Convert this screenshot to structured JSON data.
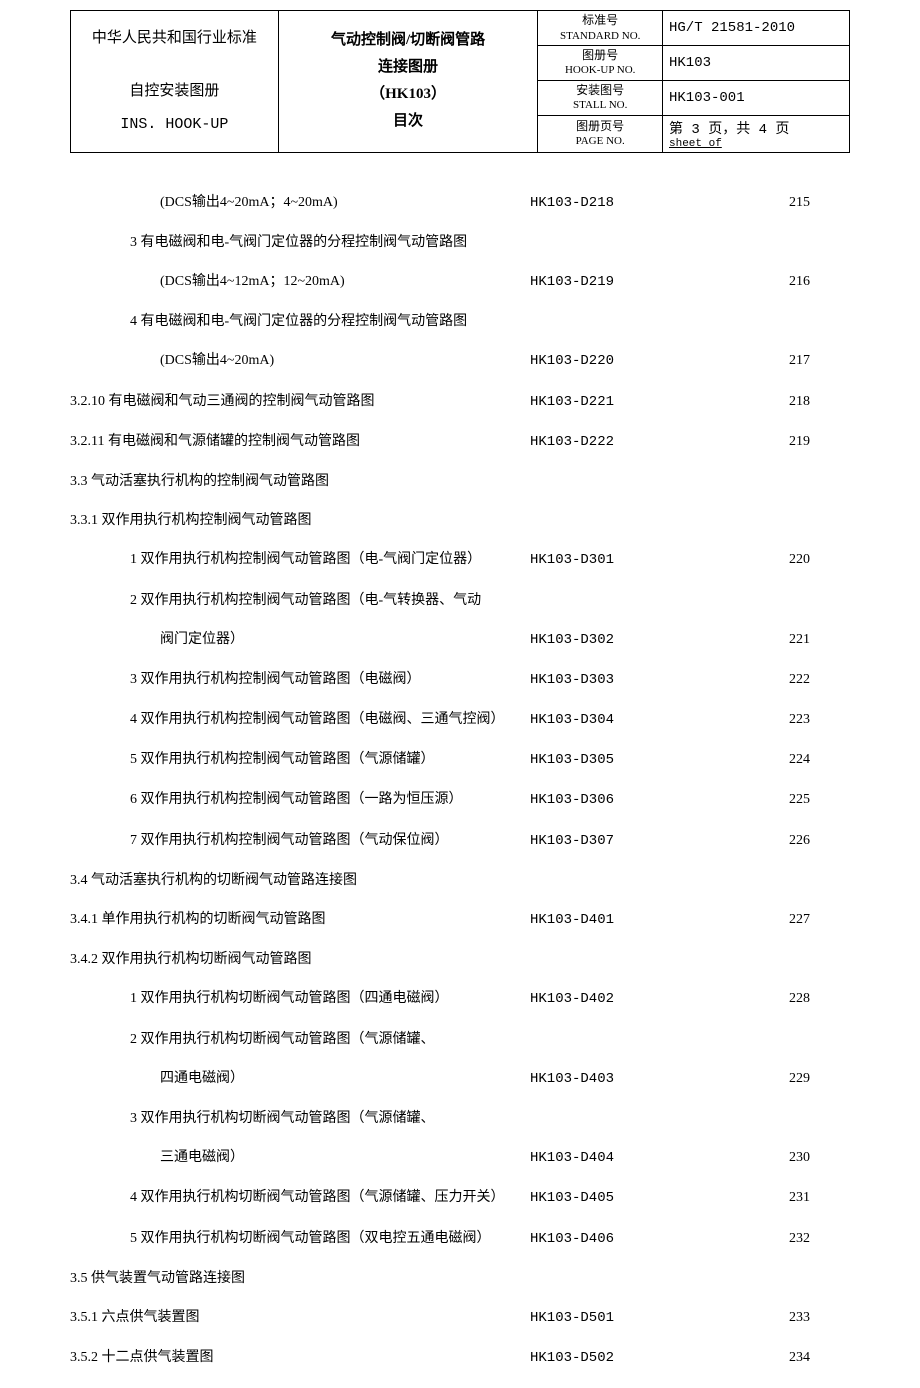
{
  "header": {
    "left_line1": "中华人民共和国行业标准",
    "left_line2": "自控安装图册",
    "left_line3": "INS. HOOK-UP",
    "center_line1": "气动控制阀/切断阀管路",
    "center_line2": "连接图册",
    "center_line3": "（HK103）",
    "center_line4": "目次",
    "std_no_label_cn": "标准号",
    "std_no_label_en": "STANDARD NO.",
    "std_no_value": "HG/T 21581-2010",
    "hookup_no_label_cn": "图册号",
    "hookup_no_label_en": "HOOK-UP NO.",
    "hookup_no_value": "HK103",
    "stall_no_label_cn": "安装图号",
    "stall_no_label_en": "STALL NO.",
    "stall_no_value": "HK103-001",
    "page_no_label_cn": "图册页号",
    "page_no_label_en": "PAGE NO.",
    "page_no_value_cn": "第 3 页，共 4 页",
    "page_no_value_en": "sheet     of"
  },
  "rows": [
    {
      "indent": 3,
      "label": "(DCS输出4~20mA；4~20mA)",
      "code": "HK103-D218",
      "page": "215"
    },
    {
      "indent": 2,
      "label": "3 有电磁阀和电-气阀门定位器的分程控制阀气动管路图",
      "code": "",
      "page": ""
    },
    {
      "indent": 3,
      "label": "(DCS输出4~12mA；12~20mA)",
      "code": "HK103-D219",
      "page": "216"
    },
    {
      "indent": 2,
      "label": "4 有电磁阀和电-气阀门定位器的分程控制阀气动管路图",
      "code": "",
      "page": ""
    },
    {
      "indent": 3,
      "label": "(DCS输出4~20mA)",
      "code": "HK103-D220",
      "page": "217"
    },
    {
      "indent": 0,
      "label": "3.2.10 有电磁阀和气动三通阀的控制阀气动管路图",
      "code": "HK103-D221",
      "page": "218"
    },
    {
      "indent": 0,
      "label": "3.2.11 有电磁阀和气源储罐的控制阀气动管路图",
      "code": "HK103-D222",
      "page": "219"
    },
    {
      "indent": 0,
      "label": "3.3 气动活塞执行机构的控制阀气动管路图",
      "code": "",
      "page": ""
    },
    {
      "indent": 0,
      "label": "3.3.1 双作用执行机构控制阀气动管路图",
      "code": "",
      "page": ""
    },
    {
      "indent": 2,
      "label": "1 双作用执行机构控制阀气动管路图（电-气阀门定位器）",
      "code": "HK103-D301",
      "page": "220"
    },
    {
      "indent": 2,
      "label": "2 双作用执行机构控制阀气动管路图（电-气转换器、气动",
      "code": "",
      "page": ""
    },
    {
      "indent": 3,
      "label": "阀门定位器）",
      "code": "HK103-D302",
      "page": "221"
    },
    {
      "indent": 2,
      "label": "3 双作用执行机构控制阀气动管路图（电磁阀）",
      "code": "HK103-D303",
      "page": "222"
    },
    {
      "indent": 2,
      "label": "4 双作用执行机构控制阀气动管路图（电磁阀、三通气控阀）",
      "code": "HK103-D304",
      "page": "223"
    },
    {
      "indent": 2,
      "label": "5 双作用执行机构控制阀气动管路图（气源储罐）",
      "code": "HK103-D305",
      "page": "224"
    },
    {
      "indent": 2,
      "label": "6 双作用执行机构控制阀气动管路图（一路为恒压源）",
      "code": "HK103-D306",
      "page": "225"
    },
    {
      "indent": 2,
      "label": "7 双作用执行机构控制阀气动管路图（气动保位阀）",
      "code": "HK103-D307",
      "page": "226"
    },
    {
      "indent": 0,
      "label": "3.4 气动活塞执行机构的切断阀气动管路连接图",
      "code": "",
      "page": ""
    },
    {
      "indent": 0,
      "label": "3.4.1 单作用执行机构的切断阀气动管路图",
      "code": "HK103-D401",
      "page": "227"
    },
    {
      "indent": 0,
      "label": "3.4.2 双作用执行机构切断阀气动管路图",
      "code": "",
      "page": ""
    },
    {
      "indent": 2,
      "label": "1 双作用执行机构切断阀气动管路图（四通电磁阀）",
      "code": "HK103-D402",
      "page": "228"
    },
    {
      "indent": 2,
      "label": "2 双作用执行机构切断阀气动管路图（气源储罐、",
      "code": "",
      "page": ""
    },
    {
      "indent": 3,
      "label": "四通电磁阀）",
      "code": "HK103-D403",
      "page": "229"
    },
    {
      "indent": 2,
      "label": "3 双作用执行机构切断阀气动管路图（气源储罐、",
      "code": "",
      "page": ""
    },
    {
      "indent": 3,
      "label": "三通电磁阀）",
      "code": "HK103-D404",
      "page": "230"
    },
    {
      "indent": 2,
      "label": "4 双作用执行机构切断阀气动管路图（气源储罐、压力开关）",
      "code": "HK103-D405",
      "page": "231"
    },
    {
      "indent": 2,
      "label": "5 双作用执行机构切断阀气动管路图（双电控五通电磁阀）",
      "code": "HK103-D406",
      "page": "232"
    },
    {
      "indent": 0,
      "label": "3.5 供气装置气动管路连接图",
      "code": "",
      "page": ""
    },
    {
      "indent": 0,
      "label": "3.5.1 六点供气装置图",
      "code": "HK103-D501",
      "page": "233"
    },
    {
      "indent": 0,
      "label": "3.5.2 十二点供气装置图",
      "code": "HK103-D502",
      "page": "234"
    }
  ]
}
